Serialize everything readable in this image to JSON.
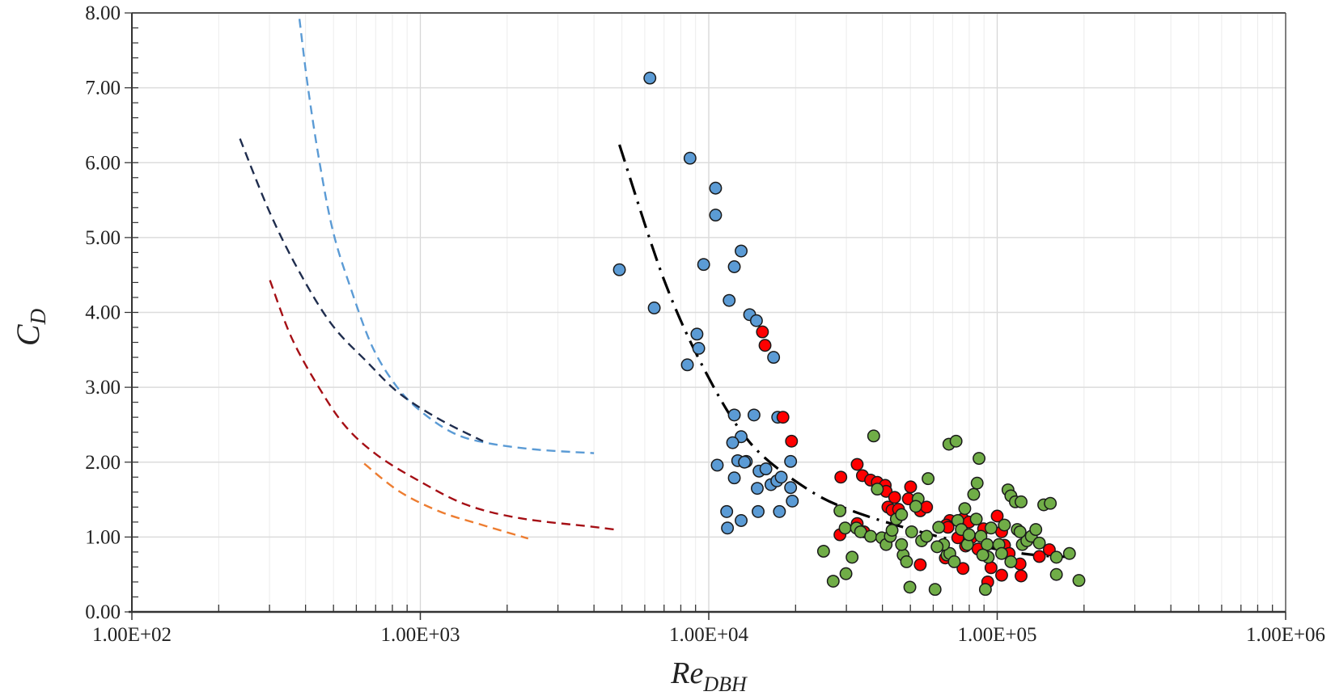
{
  "chart_data": {
    "type": "scatter",
    "title": "",
    "xlabel": "Re",
    "xlabel_sub": "DBH",
    "ylabel": "C",
    "ylabel_sub": "D",
    "x_scale": "log",
    "xlim": [
      100,
      1000000
    ],
    "ylim": [
      0,
      8
    ],
    "grid": true,
    "legend": "none",
    "x_ticks": [
      100,
      1000,
      10000,
      100000,
      1000000
    ],
    "x_tick_labels": [
      "1.00E+02",
      "1.00E+03",
      "1.00E+04",
      "1.00E+05",
      "1.00E+06"
    ],
    "y_ticks": [
      0,
      1,
      2,
      3,
      4,
      5,
      6,
      7,
      8
    ],
    "y_tick_labels": [
      "0.00",
      "1.00",
      "2.00",
      "3.00",
      "4.00",
      "5.00",
      "6.00",
      "7.00",
      "8.00"
    ],
    "scatter_series": [
      {
        "color": "#5b9bd5",
        "points": [
          [
            6250,
            7.13
          ],
          [
            8610,
            6.06
          ],
          [
            10560,
            5.66
          ],
          [
            10560,
            5.3
          ],
          [
            12950,
            4.82
          ],
          [
            9600,
            4.64
          ],
          [
            12260,
            4.61
          ],
          [
            4900,
            4.57
          ],
          [
            6470,
            4.06
          ],
          [
            11770,
            4.16
          ],
          [
            13860,
            3.97
          ],
          [
            14630,
            3.89
          ],
          [
            9100,
            3.71
          ],
          [
            9230,
            3.52
          ],
          [
            8430,
            3.3
          ],
          [
            16780,
            3.4
          ],
          [
            12260,
            2.63
          ],
          [
            14350,
            2.63
          ],
          [
            17340,
            2.6
          ],
          [
            12950,
            2.34
          ],
          [
            12100,
            2.26
          ],
          [
            13490,
            2.01
          ],
          [
            10700,
            1.96
          ],
          [
            12600,
            2.02
          ],
          [
            13300,
            2.0
          ],
          [
            14940,
            1.88
          ],
          [
            15780,
            1.91
          ],
          [
            19220,
            2.01
          ],
          [
            12260,
            1.79
          ],
          [
            14730,
            1.65
          ],
          [
            16430,
            1.7
          ],
          [
            17220,
            1.75
          ],
          [
            17830,
            1.8
          ],
          [
            19220,
            1.66
          ],
          [
            11540,
            1.34
          ],
          [
            14830,
            1.34
          ],
          [
            17580,
            1.34
          ],
          [
            19480,
            1.48
          ],
          [
            12950,
            1.22
          ],
          [
            11610,
            1.12
          ]
        ]
      },
      {
        "color": "#ff0000",
        "points": [
          [
            15350,
            3.74
          ],
          [
            15670,
            3.56
          ],
          [
            18080,
            2.6
          ],
          [
            19360,
            2.28
          ],
          [
            28700,
            1.8
          ],
          [
            32700,
            1.97
          ],
          [
            34100,
            1.82
          ],
          [
            36400,
            1.76
          ],
          [
            38400,
            1.73
          ],
          [
            40900,
            1.69
          ],
          [
            41200,
            1.61
          ],
          [
            41800,
            1.4
          ],
          [
            43200,
            1.36
          ],
          [
            50100,
            1.67
          ],
          [
            44100,
            1.53
          ],
          [
            49200,
            1.51
          ],
          [
            54100,
            1.35
          ],
          [
            68500,
            1.22
          ],
          [
            66600,
            1.16
          ],
          [
            67500,
            1.13
          ],
          [
            76100,
            1.24
          ],
          [
            79900,
            1.2
          ],
          [
            81300,
            0.99
          ],
          [
            85800,
            0.84
          ],
          [
            77700,
            0.88
          ],
          [
            106000,
            0.89
          ],
          [
            110000,
            0.78
          ],
          [
            120000,
            0.64
          ],
          [
            103600,
            0.49
          ],
          [
            95200,
            0.59
          ],
          [
            92700,
            0.4
          ],
          [
            151600,
            0.83
          ],
          [
            121000,
            0.48
          ],
          [
            140000,
            0.74
          ],
          [
            56900,
            1.4
          ],
          [
            32700,
            1.18
          ],
          [
            34500,
            1.07
          ],
          [
            28500,
            1.03
          ],
          [
            45500,
            1.37
          ],
          [
            54100,
            0.63
          ],
          [
            76100,
            0.58
          ],
          [
            66100,
            0.72
          ],
          [
            73000,
            0.99
          ],
          [
            89700,
            1.11
          ],
          [
            103600,
            1.07
          ],
          [
            100000,
            1.28
          ]
        ]
      },
      {
        "color": "#70ad47",
        "points": [
          [
            25000,
            0.81
          ],
          [
            27000,
            0.41
          ],
          [
            28500,
            1.35
          ],
          [
            29900,
            0.51
          ],
          [
            31400,
            0.73
          ],
          [
            29700,
            1.12
          ],
          [
            32500,
            1.12
          ],
          [
            33600,
            1.07
          ],
          [
            36400,
            1.01
          ],
          [
            37300,
            2.35
          ],
          [
            39800,
            0.99
          ],
          [
            41200,
            0.9
          ],
          [
            42600,
            1.01
          ],
          [
            43200,
            1.09
          ],
          [
            44700,
            1.24
          ],
          [
            46600,
            1.3
          ],
          [
            47200,
            0.76
          ],
          [
            48500,
            0.67
          ],
          [
            49800,
            0.33
          ],
          [
            50500,
            1.07
          ],
          [
            53200,
            1.51
          ],
          [
            54700,
            0.95
          ],
          [
            57600,
            1.78
          ],
          [
            60900,
            0.3
          ],
          [
            62700,
            1.13
          ],
          [
            67000,
            0.76
          ],
          [
            68000,
            2.24
          ],
          [
            72000,
            2.28
          ],
          [
            73000,
            1.22
          ],
          [
            75100,
            1.1
          ],
          [
            77200,
            1.38
          ],
          [
            78800,
            0.9
          ],
          [
            79900,
            1.03
          ],
          [
            82900,
            1.57
          ],
          [
            85200,
            1.72
          ],
          [
            86500,
            2.05
          ],
          [
            87800,
            1.01
          ],
          [
            91000,
            0.3
          ],
          [
            93100,
            0.73
          ],
          [
            95200,
            1.12
          ],
          [
            101400,
            0.9
          ],
          [
            105900,
            1.16
          ],
          [
            109000,
            1.63
          ],
          [
            111500,
            1.55
          ],
          [
            115600,
            1.47
          ],
          [
            121000,
            1.47
          ],
          [
            117400,
            1.1
          ],
          [
            122200,
            0.9
          ],
          [
            126700,
            0.95
          ],
          [
            131300,
            1.01
          ],
          [
            136100,
            1.1
          ],
          [
            140000,
            0.92
          ],
          [
            145000,
            1.43
          ],
          [
            152800,
            1.45
          ],
          [
            160400,
            0.5
          ],
          [
            160400,
            0.73
          ],
          [
            178000,
            0.78
          ],
          [
            192000,
            0.42
          ],
          [
            68500,
            0.78
          ],
          [
            71000,
            0.67
          ],
          [
            38400,
            1.64
          ],
          [
            52200,
            1.41
          ],
          [
            65200,
            0.9
          ],
          [
            92300,
            0.9
          ],
          [
            103600,
            0.78
          ],
          [
            120000,
            1.07
          ],
          [
            46600,
            0.9
          ],
          [
            56900,
            1.01
          ],
          [
            61900,
            0.87
          ],
          [
            84600,
            1.24
          ],
          [
            89100,
            0.76
          ],
          [
            111500,
            0.67
          ]
        ]
      }
    ],
    "line_series": [
      {
        "color": "#5b9bd5",
        "style": "dashed",
        "points": [
          [
            381,
            7.92
          ],
          [
            408,
            7.0
          ],
          [
            448,
            5.99
          ],
          [
            499,
            5.07
          ],
          [
            574,
            4.32
          ],
          [
            682,
            3.54
          ],
          [
            828,
            3.01
          ],
          [
            1004,
            2.68
          ],
          [
            1300,
            2.39
          ],
          [
            1683,
            2.26
          ],
          [
            2500,
            2.17
          ],
          [
            4000,
            2.12
          ]
        ]
      },
      {
        "color": "#1f2d4e",
        "style": "dashed",
        "points": [
          [
            237,
            6.32
          ],
          [
            301,
            5.33
          ],
          [
            381,
            4.54
          ],
          [
            493,
            3.84
          ],
          [
            653,
            3.34
          ],
          [
            845,
            2.92
          ],
          [
            1168,
            2.57
          ],
          [
            1650,
            2.28
          ]
        ]
      },
      {
        "color": "#a50f15",
        "style": "dashed",
        "points": [
          [
            301,
            4.43
          ],
          [
            357,
            3.67
          ],
          [
            443,
            3.01
          ],
          [
            550,
            2.48
          ],
          [
            711,
            2.09
          ],
          [
            1000,
            1.74
          ],
          [
            1448,
            1.43
          ],
          [
            2227,
            1.25
          ],
          [
            3900,
            1.14
          ],
          [
            4730,
            1.1
          ]
        ]
      },
      {
        "color": "#ed7d31",
        "style": "dashed",
        "points": [
          [
            639,
            1.98
          ],
          [
            845,
            1.61
          ],
          [
            1168,
            1.34
          ],
          [
            1611,
            1.17
          ],
          [
            2365,
            0.98
          ]
        ]
      },
      {
        "color": "#000000",
        "style": "dashdot",
        "points": [
          [
            4900,
            6.24
          ],
          [
            7020,
            4.42
          ],
          [
            9860,
            3.17
          ],
          [
            13900,
            2.26
          ],
          [
            21000,
            1.69
          ],
          [
            31400,
            1.35
          ],
          [
            62000,
            1.01
          ],
          [
            122000,
            0.78
          ],
          [
            192000,
            0.73
          ]
        ]
      }
    ]
  }
}
